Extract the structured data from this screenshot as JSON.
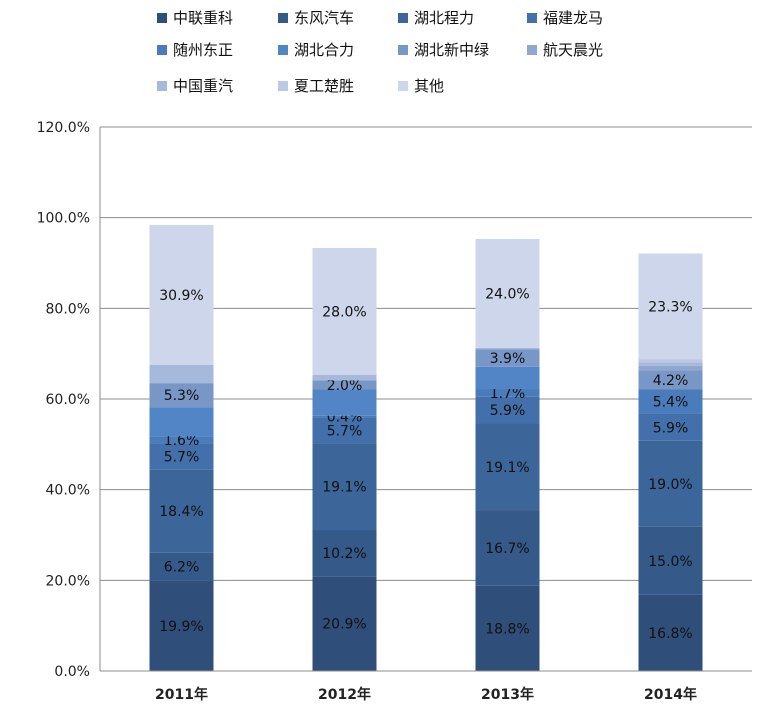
{
  "chart_data": {
    "type": "bar",
    "stacked": true,
    "title": "",
    "xlabel": "",
    "ylabel": "",
    "ylim": [
      0,
      120
    ],
    "y_ticks": [
      "0.0%",
      "20.0%",
      "40.0%",
      "60.0%",
      "80.0%",
      "100.0%",
      "120.0%"
    ],
    "grid": true,
    "legend_position": "top",
    "categories": [
      "2011年",
      "2012年",
      "2013年",
      "2014年"
    ],
    "series": [
      {
        "name": "中联重科",
        "color": "#2f4f7a",
        "values": [
          19.9,
          20.9,
          18.8,
          16.8
        ],
        "labels": [
          "19.9%",
          "20.9%",
          "18.8%",
          "16.8%"
        ]
      },
      {
        "name": "东风汽车",
        "color": "#355a8a",
        "values": [
          6.2,
          10.2,
          16.7,
          15.0
        ],
        "labels": [
          "6.2%",
          "10.2%",
          "16.7%",
          "15.0%"
        ]
      },
      {
        "name": "湖北程力",
        "color": "#3c6699",
        "values": [
          18.4,
          19.1,
          19.1,
          19.0
        ],
        "labels": [
          "18.4%",
          "19.1%",
          "19.1%",
          "19.0%"
        ]
      },
      {
        "name": "福建龙马",
        "color": "#4370aa",
        "values": [
          5.7,
          5.7,
          5.9,
          5.9
        ],
        "labels": [
          "5.7%",
          "5.7%",
          "5.9%",
          "5.9%"
        ]
      },
      {
        "name": "随州东正",
        "color": "#4a7bbb",
        "values": [
          1.6,
          0.4,
          1.7,
          5.4
        ],
        "labels": [
          "1.6%",
          "0.4%",
          "1.7%",
          "5.4%"
        ]
      },
      {
        "name": "湖北合力",
        "color": "#5285c5",
        "values": [
          6.4,
          5.8,
          4.9,
          0
        ],
        "labels": [
          "",
          "",
          "",
          ""
        ]
      },
      {
        "name": "湖北新中绿",
        "color": "#7997c6",
        "values": [
          5.3,
          2.0,
          3.9,
          4.2
        ],
        "labels": [
          "5.3%",
          "2.0%",
          "3.9%",
          "4.2%"
        ]
      },
      {
        "name": "航天晨光",
        "color": "#90a7d0",
        "values": [
          0,
          0,
          0,
          1.0
        ],
        "labels": [
          "",
          "",
          "",
          ""
        ]
      },
      {
        "name": "中国重汽",
        "color": "#a6b8db",
        "values": [
          4.0,
          1.2,
          0.3,
          0.8
        ],
        "labels": [
          "",
          "",
          "",
          ""
        ]
      },
      {
        "name": "夏工楚胜",
        "color": "#bcc9e4",
        "values": [
          0,
          0,
          0,
          0.7
        ],
        "labels": [
          "",
          "",
          "",
          ""
        ]
      },
      {
        "name": "其他",
        "color": "#cdd6ea",
        "values": [
          30.9,
          28.0,
          24.0,
          23.3
        ],
        "labels": [
          "30.9%",
          "28.0%",
          "24.0%",
          "23.3%"
        ]
      }
    ]
  }
}
